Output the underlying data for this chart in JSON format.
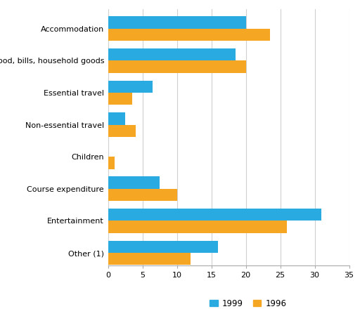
{
  "categories": [
    "Accommodation",
    "Food, bills, household goods",
    "Essential travel",
    "Non-essential travel",
    "Children",
    "Course expenditure",
    "Entertainment",
    "Other (1)"
  ],
  "values_1999": [
    20,
    18.5,
    6.5,
    2.5,
    0,
    7.5,
    31,
    16
  ],
  "values_1996": [
    23.5,
    20,
    3.5,
    4,
    1,
    10,
    26,
    12
  ],
  "color_1999": "#29ABE2",
  "color_1996": "#F5A623",
  "xlim": [
    0,
    35
  ],
  "xticks": [
    0,
    5,
    10,
    15,
    20,
    25,
    30,
    35
  ],
  "legend_labels": [
    "1999",
    "1996"
  ],
  "bar_height": 0.38,
  "background_color": "#ffffff",
  "grid_color": "#d0d0d0"
}
